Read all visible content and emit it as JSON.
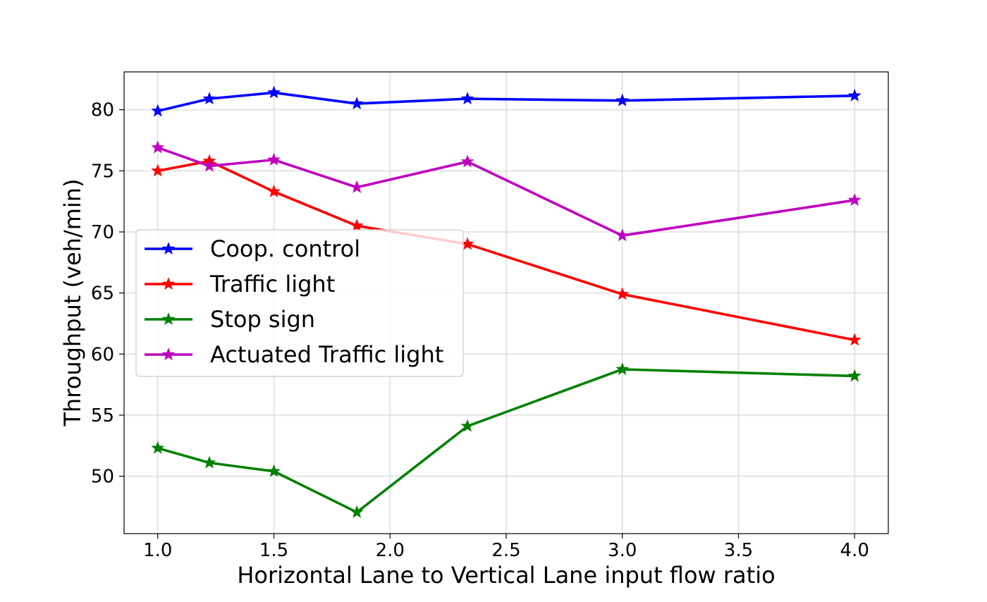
{
  "chart_data": {
    "type": "line",
    "title": "",
    "xlabel": "Horizontal Lane to Vertical Lane input flow ratio",
    "ylabel": "Throughput (veh/min)",
    "xlim": [
      0.855,
      4.145
    ],
    "ylim": [
      45.3,
      83.1
    ],
    "xticks": [
      1.0,
      1.5,
      2.0,
      2.5,
      3.0,
      3.5,
      4.0
    ],
    "xtick_labels": [
      "1.0",
      "1.5",
      "2.0",
      "2.5",
      "3.0",
      "3.5",
      "4.0"
    ],
    "yticks": [
      50,
      55,
      60,
      65,
      70,
      75,
      80
    ],
    "ytick_labels": [
      "50",
      "55",
      "60",
      "65",
      "70",
      "75",
      "80"
    ],
    "grid": true,
    "legend_position": "center-left",
    "marker": "star",
    "x": [
      1.0,
      1.2222,
      1.5,
      1.8571,
      2.3333,
      3.0,
      4.0
    ],
    "series": [
      {
        "name": "Coop. control",
        "color": "#0000ff",
        "values": [
          79.9,
          80.9,
          81.4,
          80.5,
          80.9,
          80.75,
          81.15
        ]
      },
      {
        "name": "Traffic light",
        "color": "#ff0000",
        "values": [
          75.0,
          75.8,
          73.3,
          70.5,
          69.0,
          64.9,
          61.15
        ]
      },
      {
        "name": "Stop sign",
        "color": "#008000",
        "values": [
          52.3,
          51.1,
          50.4,
          47.05,
          54.1,
          58.75,
          58.2
        ]
      },
      {
        "name": "Actuated Traffic light",
        "color": "#bf00bf",
        "values": [
          76.9,
          75.4,
          75.9,
          73.65,
          75.75,
          69.7,
          72.6
        ]
      }
    ]
  }
}
